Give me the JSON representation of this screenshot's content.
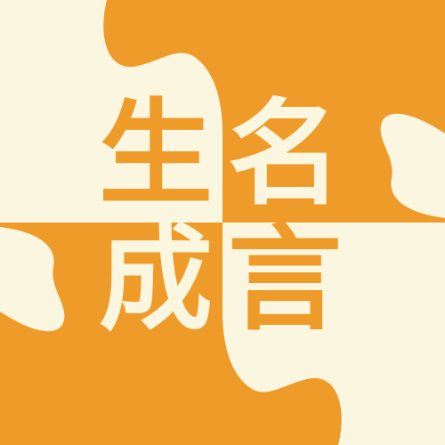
{
  "colors": {
    "cream": "#fbf6df",
    "orange": "#ee9b2a"
  },
  "title": {
    "char_1": "生",
    "char_2": "名",
    "char_3": "成",
    "char_4": "言"
  }
}
